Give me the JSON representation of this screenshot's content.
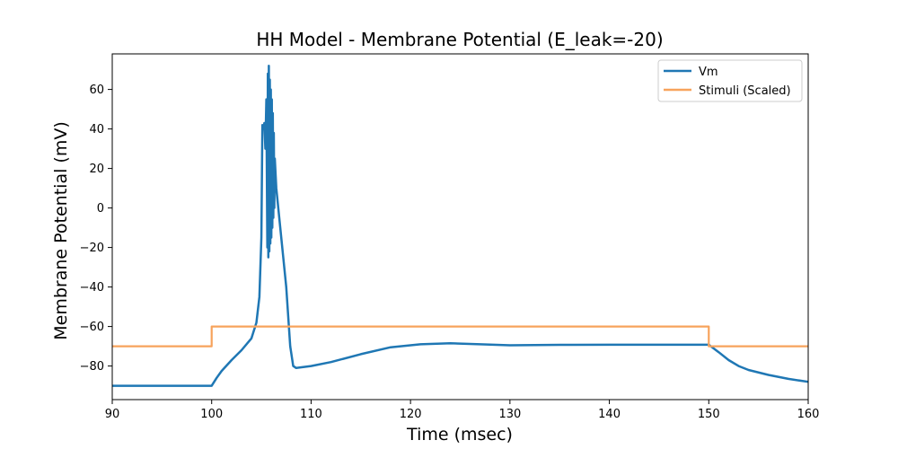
{
  "chart_data": {
    "type": "line",
    "title": "HH Model - Membrane Potential (E_leak=-20)",
    "xlabel": "Time (msec)",
    "ylabel": "Membrane Potential (mV)",
    "xlim": [
      90,
      160
    ],
    "ylim": [
      -97,
      78
    ],
    "x_ticks": [
      90,
      100,
      110,
      120,
      130,
      140,
      150,
      160
    ],
    "y_ticks": [
      -80,
      -60,
      -40,
      -20,
      0,
      20,
      40,
      60
    ],
    "grid": false,
    "legend_position": "top-right",
    "series": [
      {
        "name": "Vm",
        "color": "#1f77b4",
        "points": [
          [
            90,
            -90
          ],
          [
            100,
            -90
          ],
          [
            100.5,
            -86
          ],
          [
            101,
            -82.5
          ],
          [
            102,
            -77
          ],
          [
            103,
            -72
          ],
          [
            104,
            -66
          ],
          [
            104.5,
            -58
          ],
          [
            104.8,
            -45
          ],
          [
            105,
            -15
          ],
          [
            105.1,
            42
          ],
          [
            105.2,
            40
          ],
          [
            105.3,
            43
          ],
          [
            105.4,
            30
          ],
          [
            105.5,
            55
          ],
          [
            105.6,
            -20
          ],
          [
            105.65,
            68
          ],
          [
            105.7,
            -25
          ],
          [
            105.75,
            72
          ],
          [
            105.8,
            -22
          ],
          [
            105.85,
            65
          ],
          [
            105.9,
            -18
          ],
          [
            105.95,
            60
          ],
          [
            106.0,
            -15
          ],
          [
            106.05,
            55
          ],
          [
            106.1,
            -10
          ],
          [
            106.15,
            48
          ],
          [
            106.2,
            -5
          ],
          [
            106.25,
            38
          ],
          [
            106.3,
            0
          ],
          [
            106.35,
            25
          ],
          [
            106.5,
            10
          ],
          [
            107,
            -15
          ],
          [
            107.5,
            -40
          ],
          [
            107.9,
            -70
          ],
          [
            108.2,
            -80
          ],
          [
            108.5,
            -81
          ],
          [
            110,
            -80
          ],
          [
            112,
            -78
          ],
          [
            115,
            -74
          ],
          [
            118,
            -70.5
          ],
          [
            121,
            -69
          ],
          [
            124,
            -68.5
          ],
          [
            127,
            -69
          ],
          [
            130,
            -69.5
          ],
          [
            135,
            -69.3
          ],
          [
            140,
            -69.2
          ],
          [
            145,
            -69.2
          ],
          [
            150,
            -69.2
          ],
          [
            151,
            -73
          ],
          [
            152,
            -77
          ],
          [
            153,
            -80
          ],
          [
            154,
            -82
          ],
          [
            156,
            -84.5
          ],
          [
            158,
            -86.5
          ],
          [
            160,
            -88
          ]
        ]
      },
      {
        "name": "Stimuli (Scaled)",
        "color": "#f7a35c",
        "points": [
          [
            90,
            -70
          ],
          [
            100,
            -70
          ],
          [
            100,
            -60
          ],
          [
            150,
            -60
          ],
          [
            150,
            -70
          ],
          [
            160,
            -70
          ]
        ]
      }
    ]
  }
}
